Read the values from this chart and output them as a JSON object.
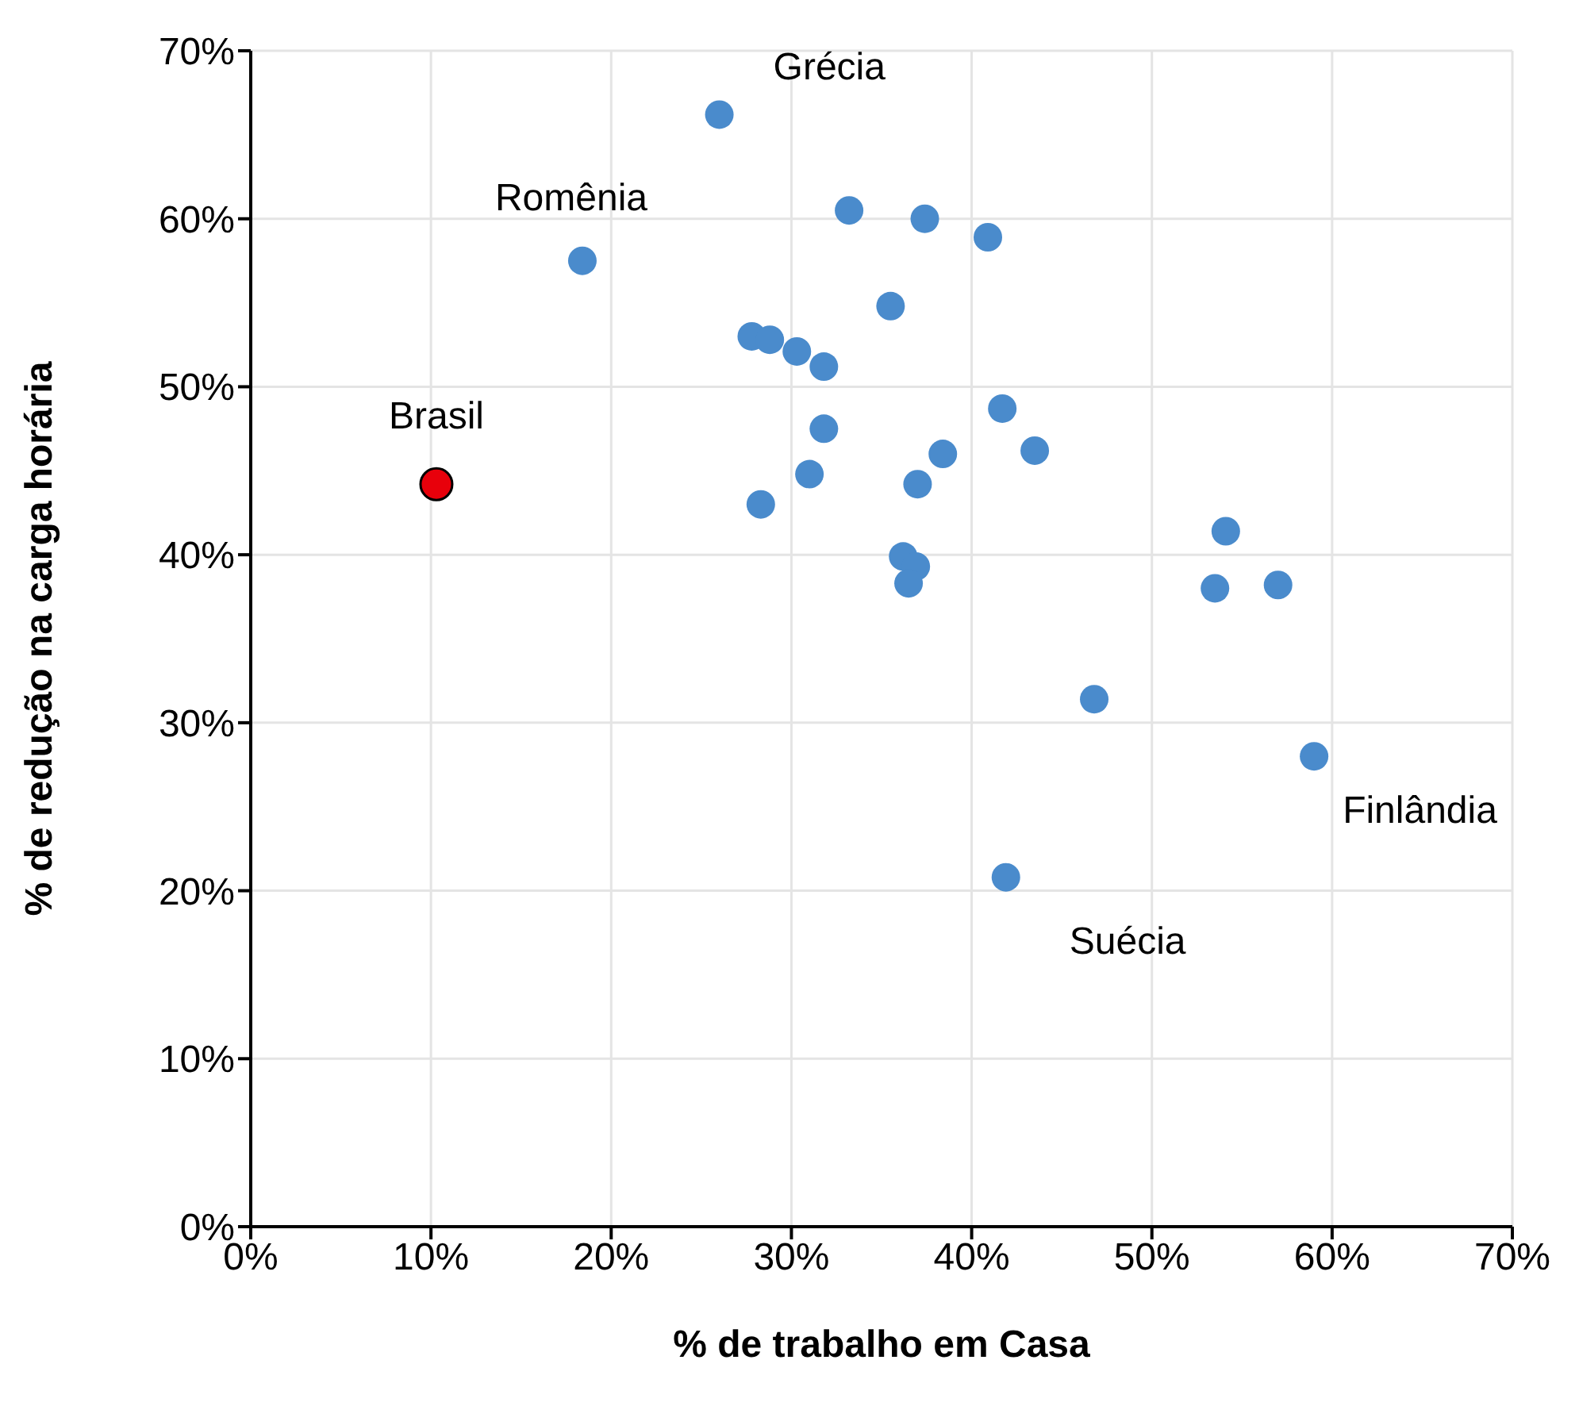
{
  "chart_data": {
    "type": "scatter",
    "xlabel": "% de trabalho em Casa",
    "ylabel": "% de redução na carga horária",
    "xlim": [
      0,
      70
    ],
    "ylim": [
      0,
      70
    ],
    "xticks": [
      {
        "value": 0,
        "label": "0%"
      },
      {
        "value": 10,
        "label": "10%"
      },
      {
        "value": 20,
        "label": "20%"
      },
      {
        "value": 30,
        "label": "30%"
      },
      {
        "value": 40,
        "label": "40%"
      },
      {
        "value": 50,
        "label": "50%"
      },
      {
        "value": 60,
        "label": "60%"
      },
      {
        "value": 70,
        "label": "70%"
      }
    ],
    "yticks": [
      {
        "value": 0,
        "label": "0%"
      },
      {
        "value": 10,
        "label": "10%"
      },
      {
        "value": 20,
        "label": "20%"
      },
      {
        "value": 30,
        "label": "30%"
      },
      {
        "value": 40,
        "label": "40%"
      },
      {
        "value": 50,
        "label": "50%"
      },
      {
        "value": 60,
        "label": "60%"
      },
      {
        "value": 70,
        "label": "70%"
      }
    ],
    "grid": true,
    "legend": false,
    "marker": "circle",
    "series": [
      {
        "color": "#4a8bcc",
        "x": [
          26.0,
          33.2,
          37.4,
          40.9,
          18.4,
          35.5,
          27.8,
          28.8,
          30.3,
          31.8,
          41.7,
          31.8,
          43.5,
          38.4,
          31.0,
          37.0,
          28.3,
          36.2,
          36.9,
          36.5,
          54.1,
          53.5,
          57.0,
          46.8,
          59.0,
          41.9
        ],
        "values": [
          66.2,
          60.5,
          60.0,
          58.9,
          57.5,
          54.8,
          53.0,
          52.8,
          52.1,
          51.2,
          48.7,
          47.5,
          46.2,
          46.0,
          44.8,
          44.2,
          43.0,
          39.9,
          39.3,
          38.3,
          41.4,
          38.0,
          38.2,
          31.4,
          28.0,
          20.8
        ]
      },
      {
        "color": "#e8000b",
        "x": [
          10.3
        ],
        "values": [
          44.2
        ]
      }
    ],
    "annotations": [
      {
        "text": "Grécia",
        "x": 26.0,
        "y": 66.2
      },
      {
        "text": "Romênia",
        "x": 18.4,
        "y": 57.5
      },
      {
        "text": "Brasil",
        "x": 10.3,
        "y": 44.2
      },
      {
        "text": "Finlândia",
        "x": 59.0,
        "y": 28.0
      },
      {
        "text": "Suécia",
        "x": 41.9,
        "y": 20.8
      }
    ]
  }
}
